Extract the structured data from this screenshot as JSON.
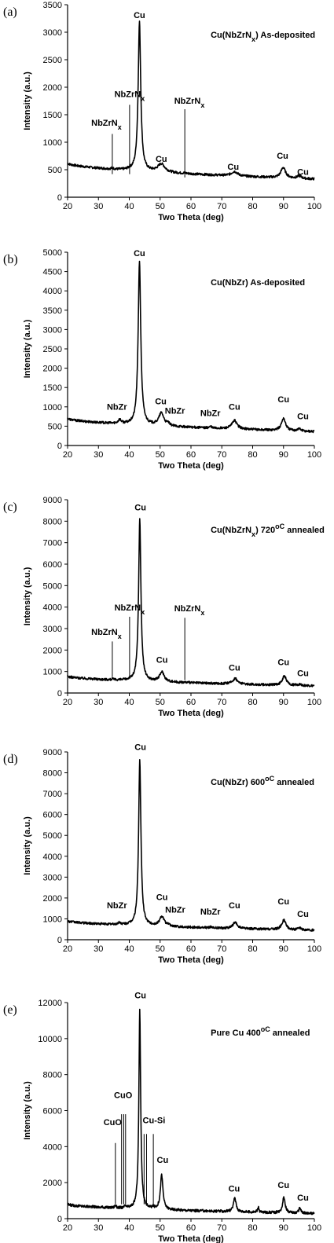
{
  "figure": {
    "background": "#ffffff",
    "line_color": "#000000"
  },
  "chart_data": [
    {
      "type": "line",
      "panel_label": "(a)",
      "title": "Cu(NbZrN_x) As-deposited",
      "xlabel": "Two Theta (deg)",
      "ylabel": "Intensity (a.u.)",
      "xlim": [
        20,
        100
      ],
      "ylim": [
        0,
        3500
      ],
      "xticks": [
        20,
        30,
        40,
        50,
        60,
        70,
        80,
        90,
        100
      ],
      "yticks": [
        0,
        500,
        1000,
        1500,
        2000,
        2500,
        3000,
        3500
      ],
      "baseline": {
        "start": 620,
        "end": 330
      },
      "peaks": [
        {
          "x": 43.3,
          "height": 2720,
          "width": 0.5
        },
        {
          "x": 50.4,
          "height": 150,
          "width": 1.4
        },
        {
          "x": 74.1,
          "height": 80,
          "width": 1.2
        },
        {
          "x": 89.9,
          "height": 190,
          "width": 0.9
        },
        {
          "x": 95.1,
          "height": 45,
          "width": 0.8
        },
        {
          "x": 34.5,
          "height": 20,
          "width": 0.4
        },
        {
          "x": 40.1,
          "height": 15,
          "width": 0.4
        },
        {
          "x": 58.0,
          "height": 10,
          "width": 0.4
        }
      ],
      "annotations": [
        {
          "text": "Cu",
          "x": 43.3,
          "y": 3260
        },
        {
          "text": "Cu",
          "x": 50.4,
          "y": 640
        },
        {
          "text": "Cu",
          "x": 73.7,
          "y": 500
        },
        {
          "text": "Cu",
          "x": 89.7,
          "y": 700
        },
        {
          "text": "Cu",
          "x": 96.3,
          "y": 410
        },
        {
          "text": "NbZrN_x",
          "x": 32.6,
          "y": 1300,
          "line_x": 34.5,
          "line_from": 420,
          "line_to": 1150
        },
        {
          "text": "NbZrN_x",
          "x": 40.1,
          "y": 1820,
          "line_x": 40.1,
          "line_from": 420,
          "line_to": 1680
        },
        {
          "text": "NbZrN_x",
          "x": 59.5,
          "y": 1700,
          "line_x": 58.0,
          "line_from": 360,
          "line_to": 1600
        }
      ]
    },
    {
      "type": "line",
      "panel_label": "(b)",
      "title": "Cu(NbZr) As-deposited",
      "xlabel": "Two Theta (deg)",
      "ylabel": "Intensity (a.u.)",
      "xlim": [
        20,
        100
      ],
      "ylim": [
        0,
        5000
      ],
      "xticks": [
        20,
        30,
        40,
        50,
        60,
        70,
        80,
        90,
        100
      ],
      "yticks": [
        0,
        500,
        1000,
        1500,
        2000,
        2500,
        3000,
        3500,
        4000,
        4500,
        5000
      ],
      "baseline": {
        "start": 700,
        "end": 360
      },
      "peaks": [
        {
          "x": 43.3,
          "height": 4250,
          "width": 0.5
        },
        {
          "x": 50.4,
          "height": 330,
          "width": 1.0
        },
        {
          "x": 74.1,
          "height": 220,
          "width": 1.0
        },
        {
          "x": 90.0,
          "height": 320,
          "width": 0.8
        },
        {
          "x": 95.1,
          "height": 60,
          "width": 0.7
        },
        {
          "x": 36.9,
          "height": 100,
          "width": 0.6
        },
        {
          "x": 52.6,
          "height": 60,
          "width": 0.4
        },
        {
          "x": 66.3,
          "height": 40,
          "width": 0.4
        }
      ],
      "annotations": [
        {
          "text": "Cu",
          "x": 43.3,
          "y": 4900
        },
        {
          "text": "NbZr",
          "x": 36.0,
          "y": 920
        },
        {
          "text": "Cu",
          "x": 50.2,
          "y": 1070
        },
        {
          "text": "NbZr",
          "x": 54.8,
          "y": 820
        },
        {
          "text": "NbZr",
          "x": 66.3,
          "y": 760
        },
        {
          "text": "Cu",
          "x": 74.1,
          "y": 920
        },
        {
          "text": "Cu",
          "x": 90.0,
          "y": 1120
        },
        {
          "text": "Cu",
          "x": 96.3,
          "y": 680
        }
      ]
    },
    {
      "type": "line",
      "panel_label": "(c)",
      "title": "Cu(NbZrN_x) 720^oC annealed",
      "xlabel": "Two Theta (deg)",
      "ylabel": "Intensity (a.u.)",
      "xlim": [
        20,
        100
      ],
      "ylim": [
        0,
        9000
      ],
      "xticks": [
        20,
        30,
        40,
        50,
        60,
        70,
        80,
        90,
        100
      ],
      "yticks": [
        0,
        1000,
        2000,
        3000,
        4000,
        5000,
        6000,
        7000,
        8000,
        9000
      ],
      "baseline": {
        "start": 780,
        "end": 330
      },
      "peaks": [
        {
          "x": 43.4,
          "height": 7550,
          "width": 0.45
        },
        {
          "x": 50.6,
          "height": 450,
          "width": 0.9
        },
        {
          "x": 74.3,
          "height": 260,
          "width": 0.9
        },
        {
          "x": 90.3,
          "height": 420,
          "width": 0.8
        },
        {
          "x": 95.3,
          "height": 70,
          "width": 0.6
        },
        {
          "x": 34.5,
          "height": 40,
          "width": 0.3
        },
        {
          "x": 40.1,
          "height": 30,
          "width": 0.3
        },
        {
          "x": 58.0,
          "height": 20,
          "width": 0.3
        }
      ],
      "annotations": [
        {
          "text": "Cu",
          "x": 43.6,
          "y": 8500
        },
        {
          "text": "Cu",
          "x": 50.6,
          "y": 1400
        },
        {
          "text": "Cu",
          "x": 74.1,
          "y": 1050
        },
        {
          "text": "Cu",
          "x": 90.0,
          "y": 1300
        },
        {
          "text": "Cu",
          "x": 96.3,
          "y": 780
        },
        {
          "text": "NbZrN_x",
          "x": 32.6,
          "y": 2700,
          "line_x": 34.5,
          "line_from": 750,
          "line_to": 2400
        },
        {
          "text": "NbZrN_x",
          "x": 40.1,
          "y": 3850,
          "line_x": 40.1,
          "line_from": 750,
          "line_to": 3550
        },
        {
          "text": "NbZrN_x",
          "x": 59.5,
          "y": 3800,
          "line_x": 58.0,
          "line_from": 600,
          "line_to": 3500
        }
      ]
    },
    {
      "type": "line",
      "panel_label": "(d)",
      "title": "Cu(NbZr) 600^oC annealed",
      "xlabel": "Two Theta (deg)",
      "ylabel": "Intensity (a.u.)",
      "xlim": [
        20,
        100
      ],
      "ylim": [
        0,
        9000
      ],
      "xticks": [
        20,
        30,
        40,
        50,
        60,
        70,
        80,
        90,
        100
      ],
      "yticks": [
        0,
        1000,
        2000,
        3000,
        4000,
        5000,
        6000,
        7000,
        8000,
        9000
      ],
      "baseline": {
        "start": 900,
        "end": 450
      },
      "peaks": [
        {
          "x": 43.4,
          "height": 7950,
          "width": 0.45
        },
        {
          "x": 50.6,
          "height": 470,
          "width": 0.9
        },
        {
          "x": 74.3,
          "height": 280,
          "width": 0.9
        },
        {
          "x": 90.1,
          "height": 460,
          "width": 0.8
        },
        {
          "x": 95.2,
          "height": 90,
          "width": 0.6
        },
        {
          "x": 36.8,
          "height": 90,
          "width": 0.5
        },
        {
          "x": 52.8,
          "height": 60,
          "width": 0.4
        },
        {
          "x": 66.3,
          "height": 40,
          "width": 0.4
        }
      ],
      "annotations": [
        {
          "text": "Cu",
          "x": 43.6,
          "y": 9100
        },
        {
          "text": "NbZr",
          "x": 36.0,
          "y": 1500
        },
        {
          "text": "Cu",
          "x": 50.6,
          "y": 1900
        },
        {
          "text": "NbZr",
          "x": 54.9,
          "y": 1300
        },
        {
          "text": "NbZr",
          "x": 66.3,
          "y": 1200
        },
        {
          "text": "Cu",
          "x": 74.1,
          "y": 1500
        },
        {
          "text": "Cu",
          "x": 90.0,
          "y": 1700
        },
        {
          "text": "Cu",
          "x": 96.3,
          "y": 1100
        }
      ]
    },
    {
      "type": "line",
      "panel_label": "(e)",
      "title": "Pure Cu 400^oC annealed",
      "xlabel": "Two Theta (deg)",
      "ylabel": "Intensity (a.u.)",
      "xlim": [
        20,
        100
      ],
      "ylim": [
        0,
        12000
      ],
      "xticks": [
        20,
        30,
        40,
        50,
        60,
        70,
        80,
        90,
        100
      ],
      "yticks": [
        0,
        2000,
        4000,
        6000,
        8000,
        10000,
        12000
      ],
      "baseline": {
        "start": 800,
        "end": 280
      },
      "peaks": [
        {
          "x": 43.4,
          "height": 11100,
          "width": 0.35
        },
        {
          "x": 50.5,
          "height": 1900,
          "width": 0.5
        },
        {
          "x": 74.2,
          "height": 800,
          "width": 0.5
        },
        {
          "x": 90.1,
          "height": 900,
          "width": 0.5
        },
        {
          "x": 95.3,
          "height": 300,
          "width": 0.4
        },
        {
          "x": 81.8,
          "height": 280,
          "width": 0.3
        },
        {
          "x": 35.5,
          "height": 150,
          "width": 0.3
        },
        {
          "x": 38.7,
          "height": 100,
          "width": 0.3
        },
        {
          "x": 47.8,
          "height": 80,
          "width": 0.3
        }
      ],
      "annotations": [
        {
          "text": "Cu",
          "x": 43.6,
          "y": 12250
        },
        {
          "text": "CuO",
          "x": 34.6,
          "y": 5200,
          "line_x": 35.5,
          "line_from": 800,
          "line_to": 4200
        },
        {
          "text": "CuO",
          "x": 38.0,
          "y": 6700,
          "line_x": 37.5,
          "line_from": 800,
          "line_to": 5800
        },
        {
          "text": "",
          "x": 38.0,
          "y": 6700,
          "line_x": 38.2,
          "line_from": 800,
          "line_to": 5800
        },
        {
          "text": "",
          "x": 38.0,
          "y": 6700,
          "line_x": 38.8,
          "line_from": 800,
          "line_to": 5800
        },
        {
          "text": "Cu-Si",
          "x": 48.0,
          "y": 5300,
          "line_x": 44.8,
          "line_from": 800,
          "line_to": 4700
        },
        {
          "text": "",
          "x": 48.0,
          "y": 5300,
          "line_x": 45.6,
          "line_from": 800,
          "line_to": 4700
        },
        {
          "text": "",
          "x": 48.0,
          "y": 5300,
          "line_x": 47.8,
          "line_from": 800,
          "line_to": 4700
        },
        {
          "text": "Cu",
          "x": 50.8,
          "y": 3100
        },
        {
          "text": "Cu",
          "x": 74.0,
          "y": 1500
        },
        {
          "text": "Cu",
          "x": 90.0,
          "y": 1700
        },
        {
          "text": "Cu",
          "x": 96.3,
          "y": 1000
        }
      ]
    }
  ]
}
